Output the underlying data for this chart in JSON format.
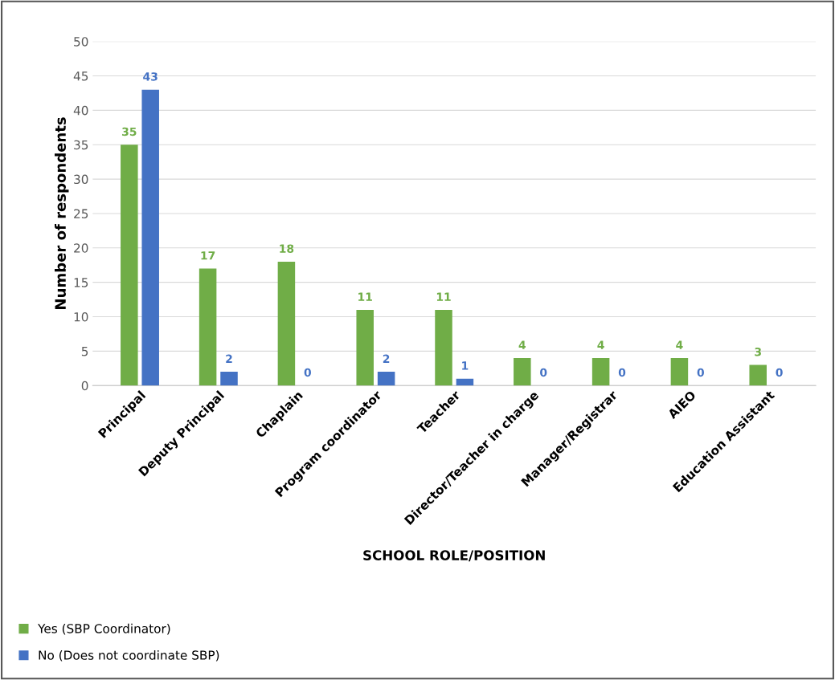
{
  "chart_data": {
    "type": "bar",
    "xlabel": "SCHOOL ROLE/POSITION",
    "ylabel": "Number of respondents",
    "categories": [
      "Principal",
      "Deputy Principal",
      "Chaplain",
      "Program coordinator",
      "Teacher",
      "Director/Teacher in charge",
      "Manager/Registrar",
      "AIEO",
      "Education Assistant"
    ],
    "series": [
      {
        "name": "Yes (SBP Coordinator)",
        "color": "#70ad47",
        "values": [
          35,
          17,
          18,
          11,
          11,
          4,
          4,
          4,
          3
        ]
      },
      {
        "name": "No (Does not coordinate SBP)",
        "color": "#4472c4",
        "values": [
          43,
          2,
          0,
          2,
          1,
          0,
          0,
          0,
          0
        ]
      }
    ],
    "ylim": [
      0,
      50
    ],
    "yticks": [
      0,
      5,
      10,
      15,
      20,
      25,
      30,
      35,
      40,
      45,
      50
    ],
    "grid": "y",
    "legend": "bottom",
    "data_labels": true
  }
}
